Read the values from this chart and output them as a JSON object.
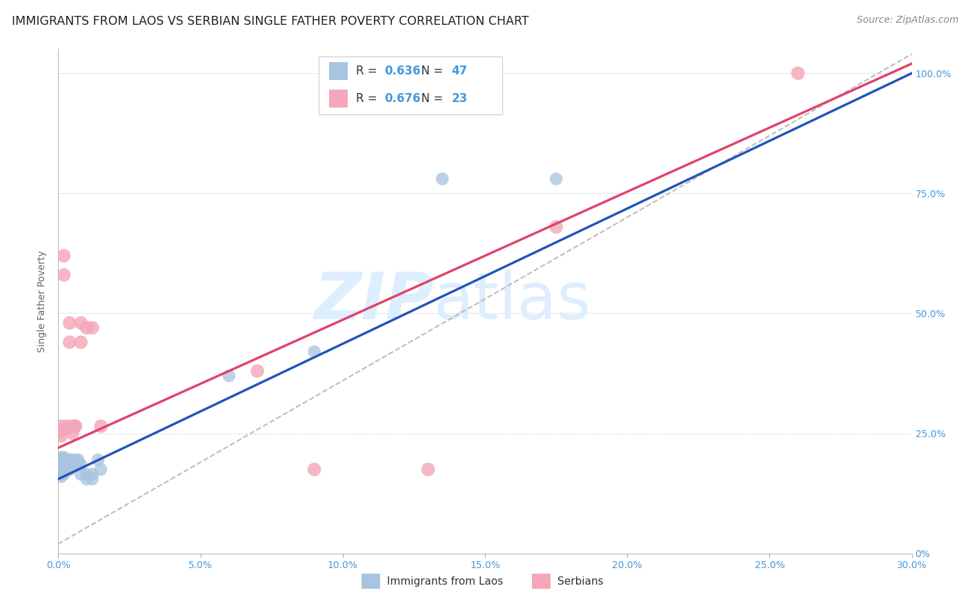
{
  "title": "IMMIGRANTS FROM LAOS VS SERBIAN SINGLE FATHER POVERTY CORRELATION CHART",
  "source": "Source: ZipAtlas.com",
  "ylabel": "Single Father Poverty",
  "xticklabels": [
    "0.0%",
    "5.0%",
    "10.0%",
    "15.0%",
    "20.0%",
    "25.0%",
    "30.0%"
  ],
  "yticklabels_right": [
    "0%",
    "25.0%",
    "50.0%",
    "75.0%",
    "100.0%"
  ],
  "ytick_positions": [
    0.0,
    0.25,
    0.5,
    0.75,
    1.0
  ],
  "xlim": [
    0,
    0.3
  ],
  "ylim": [
    0.0,
    1.05
  ],
  "legend_labels": [
    "Immigrants from Laos",
    "Serbians"
  ],
  "R_laos": 0.636,
  "N_laos": 47,
  "R_serbian": 0.676,
  "N_serbian": 23,
  "laos_color": "#a8c4e0",
  "serbian_color": "#f4a7b9",
  "laos_line_color": "#2255bb",
  "serbian_line_color": "#e0446a",
  "laos_line": [
    [
      0.0,
      0.155
    ],
    [
      0.3,
      1.0
    ]
  ],
  "serbian_line": [
    [
      0.0,
      0.22
    ],
    [
      0.3,
      1.02
    ]
  ],
  "ref_line": [
    [
      0.0,
      0.02
    ],
    [
      0.3,
      1.04
    ]
  ],
  "laos_points": [
    [
      0.0005,
      0.195
    ],
    [
      0.001,
      0.195
    ],
    [
      0.001,
      0.2
    ],
    [
      0.001,
      0.175
    ],
    [
      0.001,
      0.165
    ],
    [
      0.001,
      0.18
    ],
    [
      0.001,
      0.16
    ],
    [
      0.0015,
      0.175
    ],
    [
      0.0015,
      0.19
    ],
    [
      0.002,
      0.185
    ],
    [
      0.002,
      0.19
    ],
    [
      0.002,
      0.175
    ],
    [
      0.002,
      0.165
    ],
    [
      0.002,
      0.2
    ],
    [
      0.002,
      0.17
    ],
    [
      0.003,
      0.195
    ],
    [
      0.003,
      0.185
    ],
    [
      0.003,
      0.175
    ],
    [
      0.003,
      0.18
    ],
    [
      0.003,
      0.19
    ],
    [
      0.003,
      0.195
    ],
    [
      0.004,
      0.195
    ],
    [
      0.004,
      0.185
    ],
    [
      0.004,
      0.19
    ],
    [
      0.004,
      0.19
    ],
    [
      0.004,
      0.175
    ],
    [
      0.004,
      0.18
    ],
    [
      0.005,
      0.195
    ],
    [
      0.005,
      0.19
    ],
    [
      0.005,
      0.185
    ],
    [
      0.006,
      0.195
    ],
    [
      0.006,
      0.185
    ],
    [
      0.006,
      0.19
    ],
    [
      0.007,
      0.195
    ],
    [
      0.007,
      0.19
    ],
    [
      0.008,
      0.185
    ],
    [
      0.008,
      0.165
    ],
    [
      0.01,
      0.165
    ],
    [
      0.01,
      0.155
    ],
    [
      0.012,
      0.165
    ],
    [
      0.012,
      0.155
    ],
    [
      0.014,
      0.195
    ],
    [
      0.015,
      0.175
    ],
    [
      0.06,
      0.37
    ],
    [
      0.09,
      0.42
    ],
    [
      0.135,
      0.78
    ],
    [
      0.175,
      0.78
    ]
  ],
  "serbian_points": [
    [
      0.001,
      0.245
    ],
    [
      0.001,
      0.255
    ],
    [
      0.001,
      0.265
    ],
    [
      0.002,
      0.58
    ],
    [
      0.002,
      0.62
    ],
    [
      0.003,
      0.26
    ],
    [
      0.003,
      0.265
    ],
    [
      0.004,
      0.44
    ],
    [
      0.004,
      0.48
    ],
    [
      0.005,
      0.25
    ],
    [
      0.005,
      0.265
    ],
    [
      0.006,
      0.265
    ],
    [
      0.006,
      0.265
    ],
    [
      0.008,
      0.44
    ],
    [
      0.008,
      0.48
    ],
    [
      0.01,
      0.47
    ],
    [
      0.012,
      0.47
    ],
    [
      0.015,
      0.265
    ],
    [
      0.07,
      0.38
    ],
    [
      0.09,
      0.175
    ],
    [
      0.13,
      0.175
    ],
    [
      0.175,
      0.68
    ],
    [
      0.26,
      1.0
    ]
  ],
  "watermark_zip": "ZIP",
  "watermark_atlas": "atlas",
  "watermark_color": "#ddeeff",
  "background_color": "#ffffff",
  "grid_color": "#dddddd",
  "title_fontsize": 12.5,
  "axis_label_fontsize": 10,
  "tick_fontsize": 10,
  "source_fontsize": 10
}
